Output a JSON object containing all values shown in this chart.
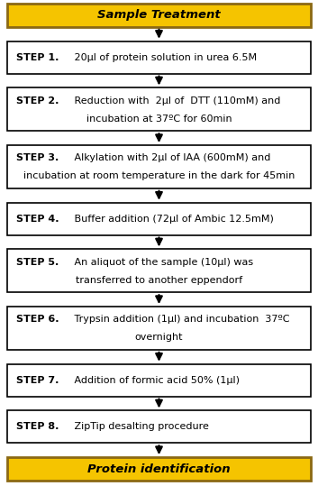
{
  "title_box": {
    "text": "Sample Treatment",
    "bg_color": "#F5C400",
    "text_color": "#000000",
    "border_color": "#8B6914"
  },
  "footer_box": {
    "text": "Protein identification",
    "bg_color": "#F5C400",
    "text_color": "#000000",
    "border_color": "#8B6914"
  },
  "steps": [
    {
      "bold_part": "STEP 1.",
      "normal_part": " 20μl of protein solution in urea 6.5M",
      "lines": 1
    },
    {
      "bold_part": "STEP 2.",
      "normal_part": " Reduction with  2μl of  DTT (110mM) and",
      "line2": "incubation at 37ºC for 60min",
      "lines": 2
    },
    {
      "bold_part": "STEP 3.",
      "normal_part": " Alkylation with 2μl of IAA (600mM) and",
      "line2": "incubation at room temperature in the dark for 45min",
      "lines": 2
    },
    {
      "bold_part": "STEP 4.",
      "normal_part": " Buffer addition (72μl of Ambic 12.5mM)",
      "lines": 1
    },
    {
      "bold_part": "STEP 5.",
      "normal_part": " An aliquot of the sample (10μl) was",
      "line2": "transferred to another eppendorf",
      "lines": 2
    },
    {
      "bold_part": "STEP 6.",
      "normal_part": " Trypsin addition (1μl) and incubation  37ºC",
      "line2": "overnight",
      "lines": 2
    },
    {
      "bold_part": "STEP 7.",
      "normal_part": " Addition of formic acid 50% (1μl)",
      "lines": 1
    },
    {
      "bold_part": "STEP 8.",
      "normal_part": " ZipTip desalting procedure",
      "lines": 1
    }
  ],
  "step_box_color": "#FFFFFF",
  "step_border_color": "#000000",
  "arrow_color": "#000000",
  "fig_width": 3.53,
  "fig_height": 5.39,
  "dpi": 100,
  "fontsize": 8.0,
  "title_fontsize": 9.5
}
